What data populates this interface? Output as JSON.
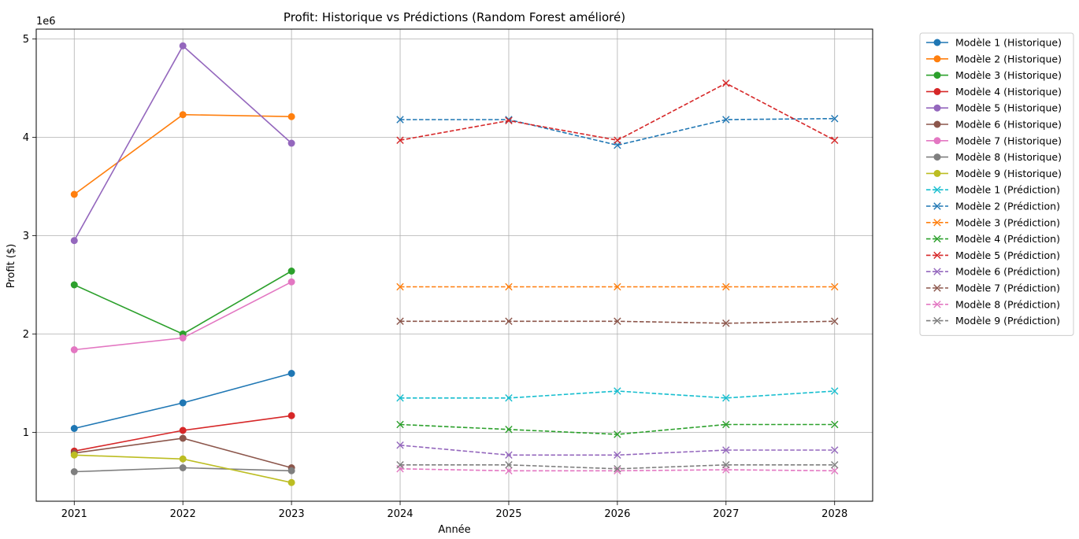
{
  "chart_data": {
    "type": "line",
    "title": "Profit: Historique vs Prédictions (Random Forest amélioré)",
    "xlabel": "Année",
    "ylabel": "Profit ($)",
    "y_scale_label": "1e6",
    "x_ticks": [
      "2021",
      "2022",
      "2023",
      "2024",
      "2025",
      "2026",
      "2027",
      "2028"
    ],
    "y_ticks": [
      "1",
      "2",
      "3",
      "4",
      "5"
    ],
    "y_tick_values": [
      1,
      2,
      3,
      4,
      5
    ],
    "xlim": [
      2020.65,
      2028.35
    ],
    "ylim": [
      0.3,
      5.1
    ],
    "grid": true,
    "legend_position": "outside-right",
    "series": [
      {
        "name": "Modèle 1 (Historique)",
        "style": "solid",
        "marker": "circle",
        "color": "#1f77b4",
        "x": [
          2021,
          2022,
          2023
        ],
        "values": [
          1.04,
          1.3,
          1.6
        ]
      },
      {
        "name": "Modèle 2 (Historique)",
        "style": "solid",
        "marker": "circle",
        "color": "#ff7f0e",
        "x": [
          2021,
          2022,
          2023
        ],
        "values": [
          3.42,
          4.23,
          4.21
        ]
      },
      {
        "name": "Modèle 3 (Historique)",
        "style": "solid",
        "marker": "circle",
        "color": "#2ca02c",
        "x": [
          2021,
          2022,
          2023
        ],
        "values": [
          2.5,
          2.0,
          2.64
        ]
      },
      {
        "name": "Modèle 4 (Historique)",
        "style": "solid",
        "marker": "circle",
        "color": "#d62728",
        "x": [
          2021,
          2022,
          2023
        ],
        "values": [
          0.81,
          1.02,
          1.17
        ]
      },
      {
        "name": "Modèle 5 (Historique)",
        "style": "solid",
        "marker": "circle",
        "color": "#9467bd",
        "x": [
          2021,
          2022,
          2023
        ],
        "values": [
          2.95,
          4.93,
          3.94
        ]
      },
      {
        "name": "Modèle 6 (Historique)",
        "style": "solid",
        "marker": "circle",
        "color": "#8c564b",
        "x": [
          2021,
          2022,
          2023
        ],
        "values": [
          0.79,
          0.94,
          0.64
        ]
      },
      {
        "name": "Modèle 7 (Historique)",
        "style": "solid",
        "marker": "circle",
        "color": "#e377c2",
        "x": [
          2021,
          2022,
          2023
        ],
        "values": [
          1.84,
          1.96,
          2.53
        ]
      },
      {
        "name": "Modèle 8 (Historique)",
        "style": "solid",
        "marker": "circle",
        "color": "#7f7f7f",
        "x": [
          2021,
          2022,
          2023
        ],
        "values": [
          0.6,
          0.64,
          0.61
        ]
      },
      {
        "name": "Modèle 9 (Historique)",
        "style": "solid",
        "marker": "circle",
        "color": "#bcbd22",
        "x": [
          2021,
          2022,
          2023
        ],
        "values": [
          0.77,
          0.73,
          0.49
        ]
      },
      {
        "name": "Modèle 1 (Prédiction)",
        "style": "dashed",
        "marker": "x",
        "color": "#17becf",
        "x": [
          2024,
          2025,
          2026,
          2027,
          2028
        ],
        "values": [
          1.35,
          1.35,
          1.42,
          1.35,
          1.42
        ]
      },
      {
        "name": "Modèle 2 (Prédiction)",
        "style": "dashed",
        "marker": "x",
        "color": "#1f77b4",
        "x": [
          2024,
          2025,
          2026,
          2027,
          2028
        ],
        "values": [
          4.18,
          4.18,
          3.92,
          4.18,
          4.19
        ]
      },
      {
        "name": "Modèle 3 (Prédiction)",
        "style": "dashed",
        "marker": "x",
        "color": "#ff7f0e",
        "x": [
          2024,
          2025,
          2026,
          2027,
          2028
        ],
        "values": [
          2.48,
          2.48,
          2.48,
          2.48,
          2.48
        ]
      },
      {
        "name": "Modèle 4 (Prédiction)",
        "style": "dashed",
        "marker": "x",
        "color": "#2ca02c",
        "x": [
          2024,
          2025,
          2026,
          2027,
          2028
        ],
        "values": [
          1.08,
          1.03,
          0.98,
          1.08,
          1.08
        ]
      },
      {
        "name": "Modèle 5 (Prédiction)",
        "style": "dashed",
        "marker": "x",
        "color": "#d62728",
        "x": [
          2024,
          2025,
          2026,
          2027,
          2028
        ],
        "values": [
          3.97,
          4.17,
          3.97,
          4.55,
          3.97
        ]
      },
      {
        "name": "Modèle 6 (Prédiction)",
        "style": "dashed",
        "marker": "x",
        "color": "#9467bd",
        "x": [
          2024,
          2025,
          2026,
          2027,
          2028
        ],
        "values": [
          0.87,
          0.77,
          0.77,
          0.82,
          0.82
        ]
      },
      {
        "name": "Modèle 7 (Prédiction)",
        "style": "dashed",
        "marker": "x",
        "color": "#8c564b",
        "x": [
          2024,
          2025,
          2026,
          2027,
          2028
        ],
        "values": [
          2.13,
          2.13,
          2.13,
          2.11,
          2.13
        ]
      },
      {
        "name": "Modèle 8 (Prédiction)",
        "style": "dashed",
        "marker": "x",
        "color": "#e377c2",
        "x": [
          2024,
          2025,
          2026,
          2027,
          2028
        ],
        "values": [
          0.63,
          0.61,
          0.61,
          0.62,
          0.61
        ]
      },
      {
        "name": "Modèle 9 (Prédiction)",
        "style": "dashed",
        "marker": "x",
        "color": "#7f7f7f",
        "x": [
          2024,
          2025,
          2026,
          2027,
          2028
        ],
        "values": [
          0.67,
          0.67,
          0.63,
          0.67,
          0.67
        ]
      }
    ]
  }
}
